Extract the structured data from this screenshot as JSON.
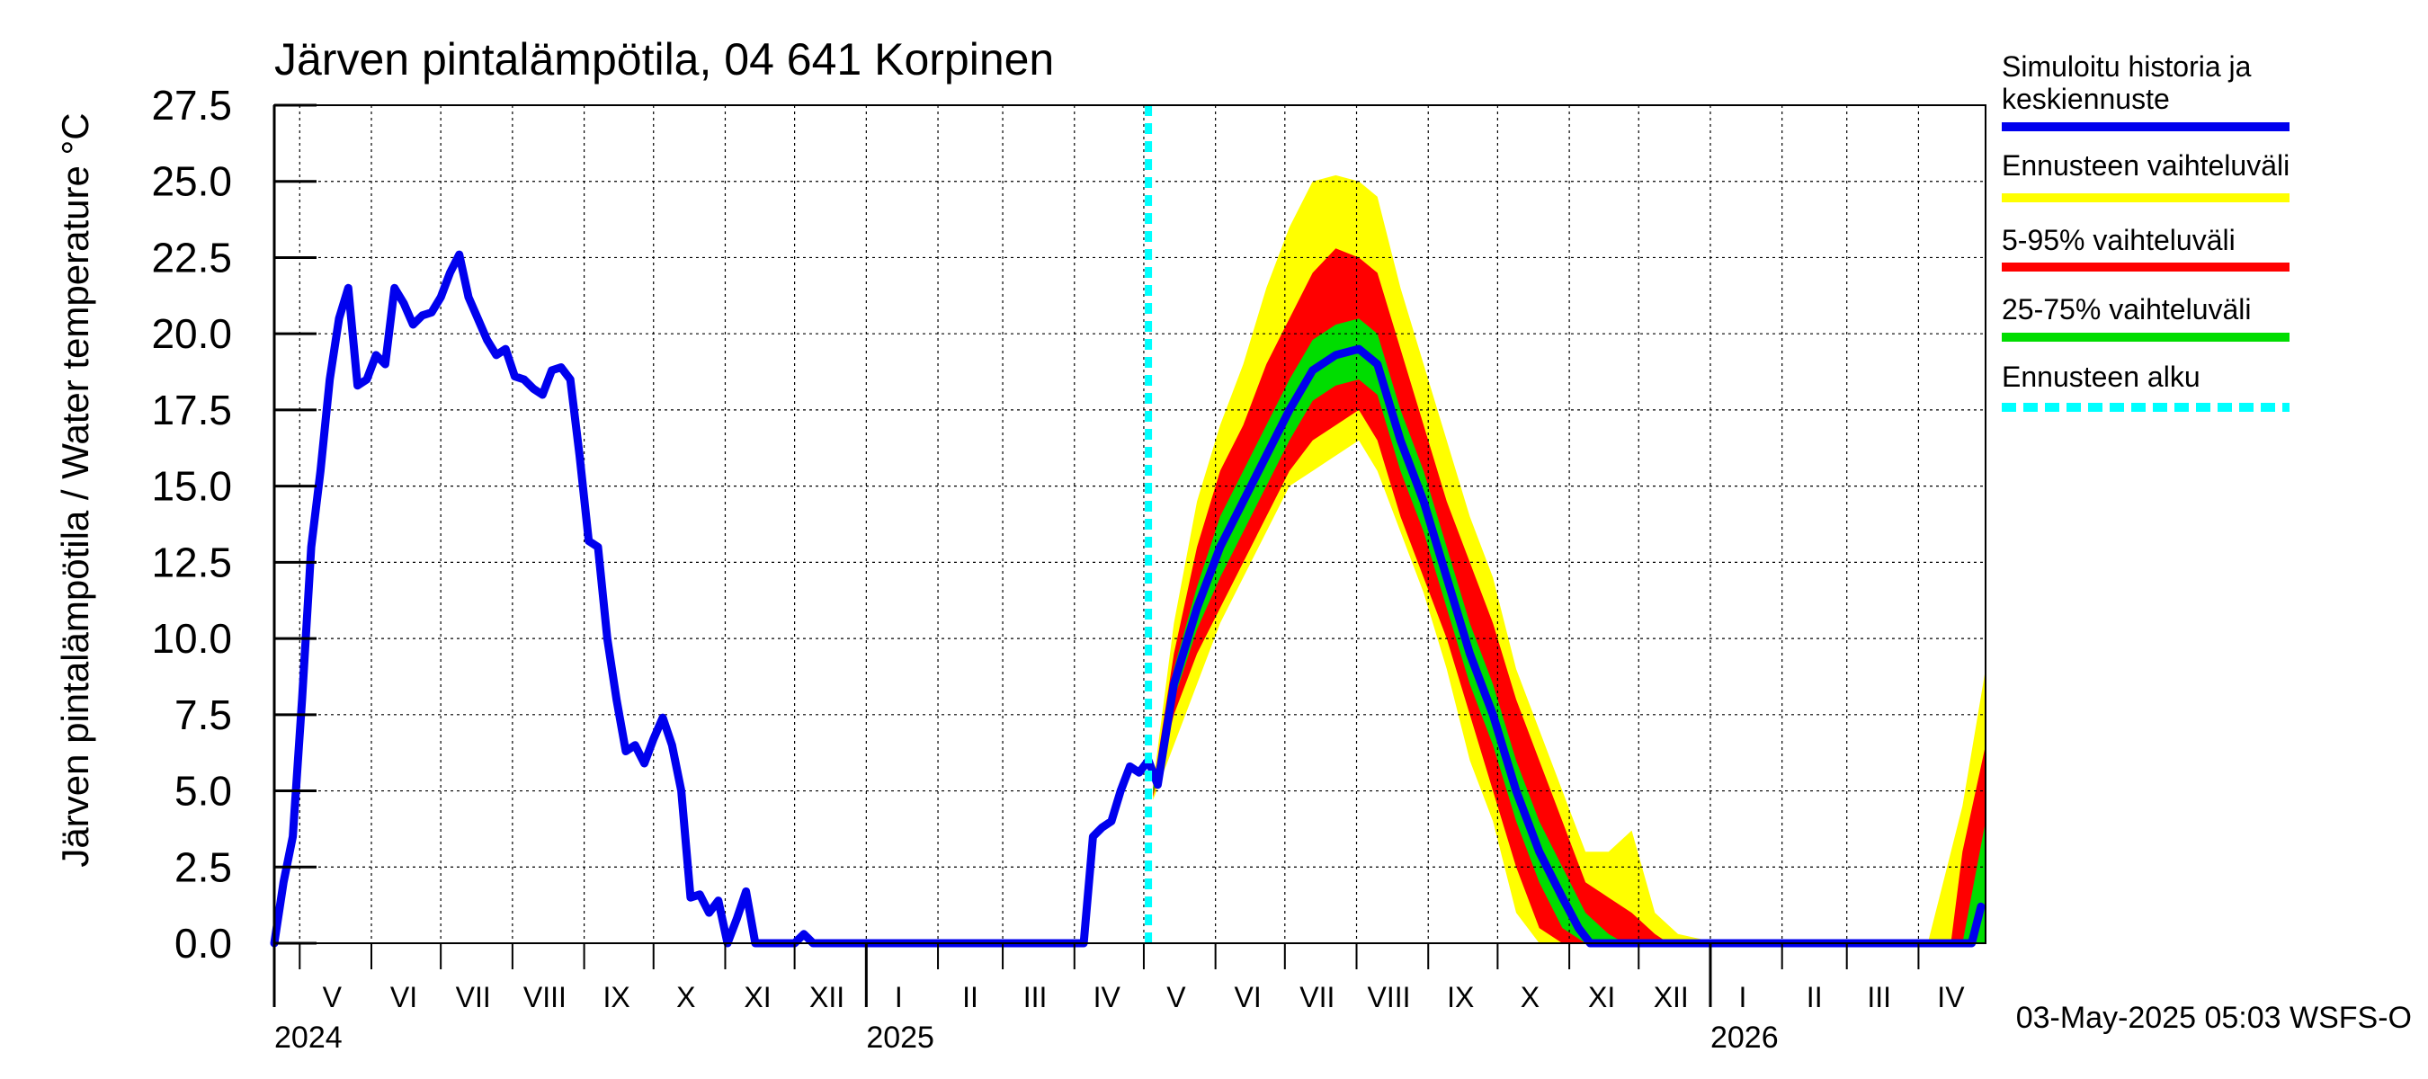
{
  "chart_data": {
    "type": "area",
    "title": "Järven pintalämpötila, 04 641 Korpinen",
    "ylabel": "Järven pintalämpötila / Water temperature °C",
    "xlabel": "",
    "ylim": [
      0,
      27.5
    ],
    "yticks": [
      "0.0",
      "2.5",
      "5.0",
      "7.5",
      "10.0",
      "12.5",
      "15.0",
      "17.5",
      "20.0",
      "22.5",
      "25.0",
      "27.5"
    ],
    "xlim": [
      "2024-04-20",
      "2026-04-30"
    ],
    "grid": true,
    "legend_position": "right",
    "forecast_start": "2025-05-03",
    "month_ticks": [
      {
        "label": "V",
        "date": "2024-05-15"
      },
      {
        "label": "VI",
        "date": "2024-06-15"
      },
      {
        "label": "VII",
        "date": "2024-07-15"
      },
      {
        "label": "VIII",
        "date": "2024-08-15"
      },
      {
        "label": "IX",
        "date": "2024-09-15"
      },
      {
        "label": "X",
        "date": "2024-10-15"
      },
      {
        "label": "XI",
        "date": "2024-11-15"
      },
      {
        "label": "XII",
        "date": "2024-12-15"
      },
      {
        "label": "I",
        "date": "2025-01-15"
      },
      {
        "label": "II",
        "date": "2025-02-15"
      },
      {
        "label": "III",
        "date": "2025-03-15"
      },
      {
        "label": "IV",
        "date": "2025-04-15"
      },
      {
        "label": "V",
        "date": "2025-05-15"
      },
      {
        "label": "VI",
        "date": "2025-06-15"
      },
      {
        "label": "VII",
        "date": "2025-07-15"
      },
      {
        "label": "VIII",
        "date": "2025-08-15"
      },
      {
        "label": "IX",
        "date": "2025-09-15"
      },
      {
        "label": "X",
        "date": "2025-10-15"
      },
      {
        "label": "XI",
        "date": "2025-11-15"
      },
      {
        "label": "XII",
        "date": "2025-12-15"
      },
      {
        "label": "I",
        "date": "2026-01-15"
      },
      {
        "label": "II",
        "date": "2026-02-15"
      },
      {
        "label": "III",
        "date": "2026-03-15"
      },
      {
        "label": "IV",
        "date": "2026-04-15"
      }
    ],
    "year_labels": [
      {
        "label": "2024",
        "date": "2024-04-20"
      },
      {
        "label": "2025",
        "date": "2025-01-01"
      },
      {
        "label": "2026",
        "date": "2026-01-01"
      }
    ],
    "legend": [
      {
        "label": "Simuloitu historia ja keskiennuste",
        "color": "#0000ee",
        "style": "solid"
      },
      {
        "label": "Ennusteen vaihteluväli",
        "color": "#ffff00",
        "style": "solid"
      },
      {
        "label": "5-95% vaihteluväli",
        "color": "#ff0000",
        "style": "solid"
      },
      {
        "label": "25-75% vaihteluväli",
        "color": "#00dd00",
        "style": "solid"
      },
      {
        "label": "Ennusteen alku",
        "color": "#00ffff",
        "style": "dashed"
      }
    ],
    "series": [
      {
        "name": "Simuloitu historia ja keskiennuste",
        "color": "#0000ee",
        "points": [
          [
            "2024-04-20",
            0.0
          ],
          [
            "2024-04-24",
            2.0
          ],
          [
            "2024-04-28",
            3.5
          ],
          [
            "2024-05-02",
            8.0
          ],
          [
            "2024-05-06",
            13.0
          ],
          [
            "2024-05-10",
            15.5
          ],
          [
            "2024-05-14",
            18.5
          ],
          [
            "2024-05-18",
            20.5
          ],
          [
            "2024-05-22",
            21.5
          ],
          [
            "2024-05-26",
            18.3
          ],
          [
            "2024-05-30",
            18.5
          ],
          [
            "2024-06-03",
            19.3
          ],
          [
            "2024-06-07",
            19.0
          ],
          [
            "2024-06-11",
            21.5
          ],
          [
            "2024-06-15",
            21.0
          ],
          [
            "2024-06-19",
            20.3
          ],
          [
            "2024-06-23",
            20.6
          ],
          [
            "2024-06-27",
            20.7
          ],
          [
            "2024-07-01",
            21.2
          ],
          [
            "2024-07-05",
            22.0
          ],
          [
            "2024-07-09",
            22.6
          ],
          [
            "2024-07-13",
            21.2
          ],
          [
            "2024-07-17",
            20.5
          ],
          [
            "2024-07-21",
            19.8
          ],
          [
            "2024-07-25",
            19.3
          ],
          [
            "2024-07-29",
            19.5
          ],
          [
            "2024-08-02",
            18.6
          ],
          [
            "2024-08-06",
            18.5
          ],
          [
            "2024-08-10",
            18.2
          ],
          [
            "2024-08-14",
            18.0
          ],
          [
            "2024-08-18",
            18.8
          ],
          [
            "2024-08-22",
            18.9
          ],
          [
            "2024-08-26",
            18.5
          ],
          [
            "2024-08-30",
            16.0
          ],
          [
            "2024-09-03",
            13.2
          ],
          [
            "2024-09-07",
            13.0
          ],
          [
            "2024-09-11",
            10.0
          ],
          [
            "2024-09-15",
            8.0
          ],
          [
            "2024-09-19",
            6.3
          ],
          [
            "2024-09-23",
            6.5
          ],
          [
            "2024-09-27",
            5.9
          ],
          [
            "2024-10-01",
            6.7
          ],
          [
            "2024-10-05",
            7.4
          ],
          [
            "2024-10-09",
            6.5
          ],
          [
            "2024-10-13",
            5.0
          ],
          [
            "2024-10-17",
            1.5
          ],
          [
            "2024-10-21",
            1.6
          ],
          [
            "2024-10-25",
            1.0
          ],
          [
            "2024-10-29",
            1.4
          ],
          [
            "2024-11-02",
            0.0
          ],
          [
            "2024-11-06",
            0.8
          ],
          [
            "2024-11-10",
            1.7
          ],
          [
            "2024-11-14",
            0.0
          ],
          [
            "2024-12-01",
            0.0
          ],
          [
            "2024-12-05",
            0.3
          ],
          [
            "2024-12-09",
            0.0
          ],
          [
            "2025-04-05",
            0.0
          ],
          [
            "2025-04-09",
            3.5
          ],
          [
            "2025-04-13",
            3.8
          ],
          [
            "2025-04-17",
            4.0
          ],
          [
            "2025-04-21",
            5.0
          ],
          [
            "2025-04-25",
            5.8
          ],
          [
            "2025-04-29",
            5.6
          ],
          [
            "2025-05-03",
            6.0
          ],
          [
            "2025-05-07",
            5.2
          ],
          [
            "2025-05-14",
            8.5
          ],
          [
            "2025-05-24",
            11.0
          ],
          [
            "2025-06-03",
            13.0
          ],
          [
            "2025-06-13",
            14.5
          ],
          [
            "2025-06-23",
            16.0
          ],
          [
            "2025-07-03",
            17.5
          ],
          [
            "2025-07-13",
            18.8
          ],
          [
            "2025-07-23",
            19.3
          ],
          [
            "2025-08-02",
            19.5
          ],
          [
            "2025-08-10",
            19.0
          ],
          [
            "2025-08-20",
            16.5
          ],
          [
            "2025-08-30",
            14.5
          ],
          [
            "2025-09-09",
            12.0
          ],
          [
            "2025-09-19",
            9.5
          ],
          [
            "2025-09-29",
            7.5
          ],
          [
            "2025-10-09",
            5.0
          ],
          [
            "2025-10-19",
            3.0
          ],
          [
            "2025-10-29",
            1.5
          ],
          [
            "2025-11-05",
            0.5
          ],
          [
            "2025-11-10",
            0.0
          ],
          [
            "2026-04-24",
            0.0
          ],
          [
            "2026-04-28",
            1.2
          ]
        ]
      },
      {
        "name": "Ennusteen vaihteluväli",
        "color": "#ffff00",
        "points": [
          [
            "2025-05-05",
            4.7,
            5.2
          ],
          [
            "2025-05-14",
            6.5,
            10.5
          ],
          [
            "2025-05-24",
            8.5,
            14.5
          ],
          [
            "2025-06-03",
            10.5,
            17.0
          ],
          [
            "2025-06-13",
            12.0,
            19.0
          ],
          [
            "2025-06-23",
            13.5,
            21.5
          ],
          [
            "2025-07-03",
            15.0,
            23.5
          ],
          [
            "2025-07-13",
            15.5,
            25.0
          ],
          [
            "2025-07-23",
            16.0,
            25.2
          ],
          [
            "2025-08-02",
            16.5,
            25.0
          ],
          [
            "2025-08-10",
            15.5,
            24.5
          ],
          [
            "2025-08-20",
            13.5,
            21.5
          ],
          [
            "2025-08-30",
            11.5,
            19.0
          ],
          [
            "2025-09-09",
            9.0,
            16.5
          ],
          [
            "2025-09-19",
            6.0,
            14.0
          ],
          [
            "2025-09-29",
            4.0,
            12.0
          ],
          [
            "2025-10-09",
            1.0,
            9.0
          ],
          [
            "2025-10-19",
            0.0,
            7.0
          ],
          [
            "2025-10-29",
            0.0,
            5.0
          ],
          [
            "2025-11-08",
            0.0,
            3.0
          ],
          [
            "2025-11-18",
            0.0,
            3.0
          ],
          [
            "2025-11-28",
            0.0,
            3.7
          ],
          [
            "2025-12-08",
            0.0,
            1.0
          ],
          [
            "2025-12-18",
            0.0,
            0.3
          ],
          [
            "2026-01-05",
            0.0,
            0.0
          ],
          [
            "2026-04-05",
            0.0,
            0.0
          ],
          [
            "2026-04-10",
            0.0,
            1.5
          ],
          [
            "2026-04-20",
            0.0,
            4.5
          ],
          [
            "2026-04-30",
            0.0,
            9.0
          ]
        ]
      },
      {
        "name": "5-95% vaihteluväli",
        "color": "#ff0000",
        "points": [
          [
            "2025-05-05",
            4.8,
            5.1
          ],
          [
            "2025-05-14",
            7.5,
            9.5
          ],
          [
            "2025-05-24",
            9.5,
            13.0
          ],
          [
            "2025-06-03",
            11.0,
            15.5
          ],
          [
            "2025-06-13",
            12.5,
            17.0
          ],
          [
            "2025-06-23",
            14.0,
            19.0
          ],
          [
            "2025-07-03",
            15.5,
            20.5
          ],
          [
            "2025-07-13",
            16.5,
            22.0
          ],
          [
            "2025-07-23",
            17.0,
            22.8
          ],
          [
            "2025-08-02",
            17.5,
            22.5
          ],
          [
            "2025-08-10",
            16.5,
            22.0
          ],
          [
            "2025-08-20",
            14.0,
            19.5
          ],
          [
            "2025-08-30",
            12.0,
            17.0
          ],
          [
            "2025-09-09",
            10.0,
            14.5
          ],
          [
            "2025-09-19",
            7.5,
            12.5
          ],
          [
            "2025-09-29",
            5.0,
            10.5
          ],
          [
            "2025-10-09",
            2.5,
            8.0
          ],
          [
            "2025-10-19",
            0.5,
            6.0
          ],
          [
            "2025-10-29",
            0.0,
            4.0
          ],
          [
            "2025-11-08",
            0.0,
            2.0
          ],
          [
            "2025-11-18",
            0.0,
            1.5
          ],
          [
            "2025-11-28",
            0.0,
            1.0
          ],
          [
            "2025-12-08",
            0.0,
            0.3
          ],
          [
            "2025-12-14",
            0.0,
            0.0
          ],
          [
            "2026-04-15",
            0.0,
            0.0
          ],
          [
            "2026-04-20",
            0.0,
            3.0
          ],
          [
            "2026-04-30",
            0.0,
            6.5
          ]
        ]
      },
      {
        "name": "25-75% vaihteluväli",
        "color": "#00dd00",
        "points": [
          [
            "2025-05-05",
            4.9,
            5.1
          ],
          [
            "2025-05-14",
            8.0,
            9.0
          ],
          [
            "2025-05-24",
            10.3,
            11.7
          ],
          [
            "2025-06-03",
            12.0,
            14.0
          ],
          [
            "2025-06-13",
            13.5,
            15.5
          ],
          [
            "2025-06-23",
            15.0,
            17.0
          ],
          [
            "2025-07-03",
            16.5,
            18.5
          ],
          [
            "2025-07-13",
            17.8,
            19.8
          ],
          [
            "2025-07-23",
            18.3,
            20.3
          ],
          [
            "2025-08-02",
            18.5,
            20.5
          ],
          [
            "2025-08-10",
            18.0,
            20.0
          ],
          [
            "2025-08-20",
            15.5,
            17.5
          ],
          [
            "2025-08-30",
            13.5,
            15.5
          ],
          [
            "2025-09-09",
            11.0,
            13.0
          ],
          [
            "2025-09-19",
            8.5,
            10.5
          ],
          [
            "2025-09-29",
            6.5,
            8.5
          ],
          [
            "2025-10-09",
            4.0,
            6.0
          ],
          [
            "2025-10-19",
            2.0,
            4.0
          ],
          [
            "2025-10-29",
            0.5,
            2.5
          ],
          [
            "2025-11-08",
            0.0,
            1.0
          ],
          [
            "2025-11-18",
            0.0,
            0.3
          ],
          [
            "2025-11-25",
            0.0,
            0.0
          ],
          [
            "2026-04-20",
            0.0,
            0.0
          ],
          [
            "2026-04-30",
            0.0,
            4.0
          ]
        ]
      }
    ]
  },
  "footer": {
    "timestamp": "03-May-2025 05:03 WSFS-O"
  }
}
